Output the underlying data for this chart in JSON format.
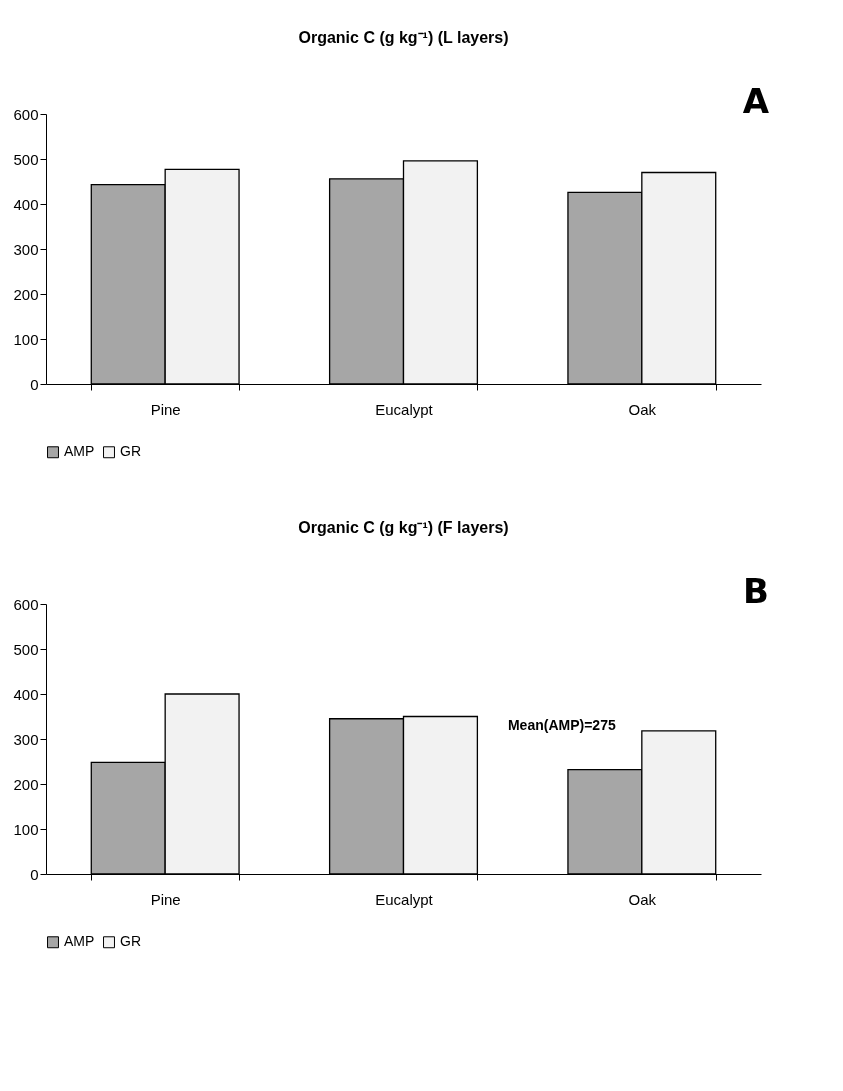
{
  "chart_data": [
    {
      "type": "bar",
      "title": "Organic C (g kg⁻¹) (L layers)",
      "categories": [
        "Pine",
        "Eucalypt",
        "Oak"
      ],
      "series": [
        {
          "name": "AMP",
          "color": "#a6a6a6",
          "values": [
            443,
            456,
            426
          ]
        },
        {
          "name": "GR",
          "color": "#f2f2f2",
          "values": [
            477,
            496,
            470
          ]
        }
      ],
      "ylim": [
        0,
        600
      ],
      "yticks": [
        0,
        100,
        200,
        300,
        400,
        500,
        600
      ],
      "grid": false,
      "legend": "bottom",
      "annotations": [
        "A"
      ]
    },
    {
      "type": "bar",
      "title": "Organic C (g kg⁻¹) (F layers)",
      "categories": [
        "Pine",
        "Eucalypt",
        "Oak"
      ],
      "series": [
        {
          "name": "AMP",
          "color": "#a6a6a6",
          "values": [
            248,
            345,
            232
          ]
        },
        {
          "name": "GR",
          "color": "#f2f2f2",
          "values": [
            400,
            350,
            318
          ]
        }
      ],
      "ylim": [
        0,
        600
      ],
      "yticks": [
        0,
        100,
        200,
        300,
        400,
        500,
        600
      ],
      "grid": false,
      "legend": "bottom",
      "annotations": [
        "B",
        {
          "text": "Mean(AMP)=275",
          "x": "Oak",
          "y": 300
        }
      ]
    }
  ]
}
